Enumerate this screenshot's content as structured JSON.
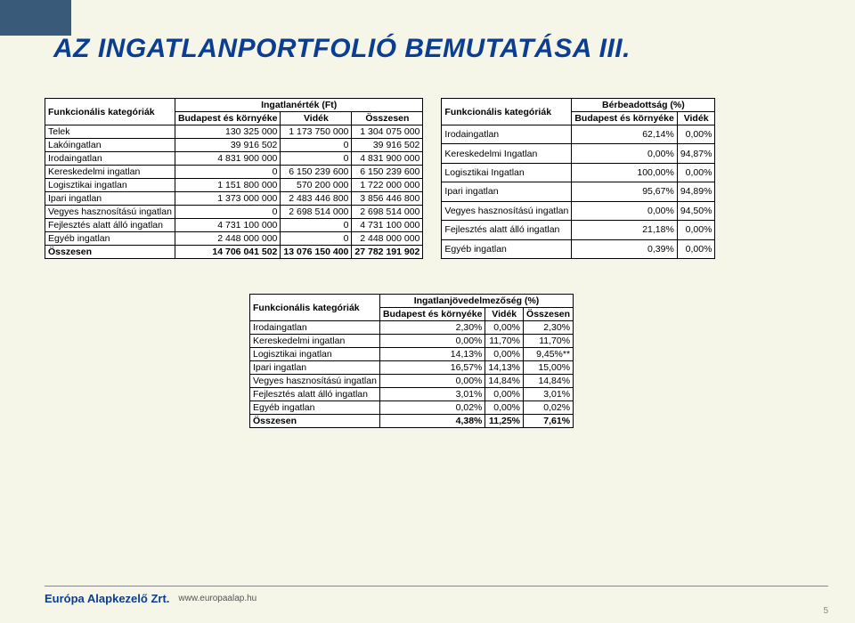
{
  "title": "AZ INGATLANPORTFOLIÓ BEMUTATÁSA III.",
  "theme": {
    "page_bg": "#f5f5e8",
    "accent": "#0b3d91",
    "corner": "#3a5a7a",
    "border": "#000000"
  },
  "table1": {
    "caption": "Ingatlanérték (Ft)",
    "row_header": "Funkcionális kategóriák",
    "columns": [
      "Budapest és környéke",
      "Vidék",
      "Összesen"
    ],
    "rows": [
      {
        "label": "Telek",
        "vals": [
          "130 325 000",
          "1 173 750 000",
          "1 304 075 000"
        ]
      },
      {
        "label": "Lakóingatlan",
        "vals": [
          "39 916 502",
          "0",
          "39 916 502"
        ]
      },
      {
        "label": "Irodaingatlan",
        "vals": [
          "4 831 900 000",
          "0",
          "4 831 900 000"
        ]
      },
      {
        "label": "Kereskedelmi ingatlan",
        "vals": [
          "0",
          "6 150 239 600",
          "6 150 239 600"
        ]
      },
      {
        "label": "Logisztikai ingatlan",
        "vals": [
          "1 151 800 000",
          "570 200 000",
          "1 722 000 000"
        ]
      },
      {
        "label": "Ipari ingatlan",
        "vals": [
          "1 373 000 000",
          "2 483 446 800",
          "3 856 446 800"
        ]
      },
      {
        "label": "Vegyes hasznosítású ingatlan",
        "vals": [
          "0",
          "2 698 514 000",
          "2 698 514 000"
        ]
      },
      {
        "label": "Fejlesztés alatt álló ingatlan",
        "vals": [
          "4 731 100 000",
          "0",
          "4 731 100 000"
        ]
      },
      {
        "label": "Egyéb ingatlan",
        "vals": [
          "2 448 000 000",
          "0",
          "2 448 000 000"
        ]
      }
    ],
    "total": {
      "label": "Összesen",
      "vals": [
        "14 706 041 502",
        "13 076 150 400",
        "27 782 191 902"
      ]
    }
  },
  "table2": {
    "caption": "Bérbeadottság (%)",
    "row_header": "Funkcionális kategóriák",
    "columns": [
      "Budapest és környéke",
      "Vidék"
    ],
    "rows": [
      {
        "label": "Irodaingatlan",
        "vals": [
          "62,14%",
          "0,00%"
        ]
      },
      {
        "label": "Kereskedelmi Ingatlan",
        "vals": [
          "0,00%",
          "94,87%"
        ]
      },
      {
        "label": "Logisztikai Ingatlan",
        "vals": [
          "100,00%",
          "0,00%"
        ]
      },
      {
        "label": "Ipari ingatlan",
        "vals": [
          "95,67%",
          "94,89%"
        ]
      },
      {
        "label": "Vegyes hasznosítású ingatlan",
        "vals": [
          "0,00%",
          "94,50%"
        ]
      },
      {
        "label": "Fejlesztés alatt álló ingatlan",
        "vals": [
          "21,18%",
          "0,00%"
        ]
      },
      {
        "label": "Egyéb ingatlan",
        "vals": [
          "0,39%",
          "0,00%"
        ]
      }
    ]
  },
  "table3": {
    "caption": "Ingatlanjövedelmezőség (%)",
    "row_header": "Funkcionális kategóriák",
    "columns": [
      "Budapest és környéke",
      "Vidék",
      "Összesen"
    ],
    "rows": [
      {
        "label": "Irodaingatlan",
        "vals": [
          "2,30%",
          "0,00%",
          "2,30%"
        ]
      },
      {
        "label": "Kereskedelmi ingatlan",
        "vals": [
          "0,00%",
          "11,70%",
          "11,70%"
        ]
      },
      {
        "label": "Logisztikai ingatlan",
        "vals": [
          "14,13%",
          "0,00%",
          "9,45%**"
        ]
      },
      {
        "label": "Ipari ingatlan",
        "vals": [
          "16,57%",
          "14,13%",
          "15,00%"
        ]
      },
      {
        "label": "Vegyes hasznosítású ingatlan",
        "vals": [
          "0,00%",
          "14,84%",
          "14,84%"
        ]
      },
      {
        "label": "Fejlesztés alatt álló ingatlan",
        "vals": [
          "3,01%",
          "0,00%",
          "3,01%"
        ]
      },
      {
        "label": "Egyéb ingatlan",
        "vals": [
          "0,02%",
          "0,00%",
          "0,02%"
        ]
      }
    ],
    "total": {
      "label": "Összesen",
      "vals": [
        "4,38%",
        "11,25%",
        "7,61%"
      ]
    }
  },
  "footer": {
    "logo": "Európa Alapkezelő Zrt.",
    "url": "www.europaalap.hu",
    "page": "5"
  }
}
